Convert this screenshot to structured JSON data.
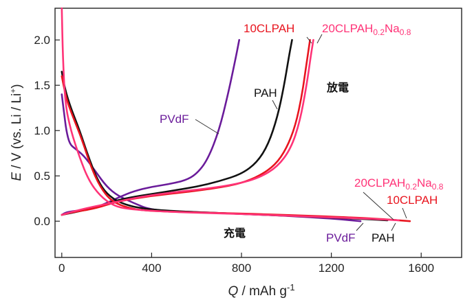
{
  "chart_data": {
    "type": "line",
    "x_axis": {
      "label": "Q / mAh g-1",
      "range": [
        -30,
        1780
      ],
      "ticks": [
        0,
        400,
        800,
        1200,
        1600
      ],
      "tick_labels": [
        "0",
        "400",
        "800",
        "1200",
        "1600"
      ]
    },
    "y_axis": {
      "label": "E / V (vs. Li / Li+)",
      "range": [
        -0.4,
        2.35
      ],
      "ticks": [
        0.0,
        0.5,
        1.0,
        1.5,
        2.0
      ],
      "tick_labels": [
        "0.0",
        "0.5",
        "1.0",
        "1.5",
        "2.0"
      ]
    },
    "grid": false,
    "region_labels": [
      {
        "text": "放電",
        "x": 1240,
        "y": 1.48
      },
      {
        "text": "充電",
        "x": 760,
        "y": -0.14
      }
    ],
    "series": [
      {
        "name": "PVdF",
        "color": "#6a1b9a",
        "discharge": [
          [
            0,
            1.4
          ],
          [
            10,
            1.2
          ],
          [
            20,
            1.0
          ],
          [
            35,
            0.85
          ],
          [
            60,
            0.8
          ],
          [
            100,
            0.72
          ],
          [
            150,
            0.55
          ],
          [
            200,
            0.38
          ],
          [
            250,
            0.28
          ],
          [
            320,
            0.2
          ],
          [
            400,
            0.12
          ],
          [
            600,
            0.1
          ],
          [
            800,
            0.08
          ],
          [
            1000,
            0.06
          ],
          [
            1200,
            0.03
          ],
          [
            1330,
            0.0
          ]
        ],
        "charge": [
          [
            0,
            0.07
          ],
          [
            20,
            0.1
          ],
          [
            80,
            0.12
          ],
          [
            150,
            0.15
          ],
          [
            200,
            0.2
          ],
          [
            260,
            0.27
          ],
          [
            320,
            0.33
          ],
          [
            400,
            0.38
          ],
          [
            480,
            0.41
          ],
          [
            550,
            0.45
          ],
          [
            600,
            0.52
          ],
          [
            650,
            0.68
          ],
          [
            700,
            1.0
          ],
          [
            740,
            1.4
          ],
          [
            770,
            1.75
          ],
          [
            790,
            2.0
          ]
        ]
      },
      {
        "name": "PAH",
        "color": "#111111",
        "discharge": [
          [
            0,
            1.65
          ],
          [
            15,
            1.45
          ],
          [
            40,
            1.25
          ],
          [
            80,
            1.0
          ],
          [
            120,
            0.7
          ],
          [
            160,
            0.45
          ],
          [
            200,
            0.3
          ],
          [
            260,
            0.2
          ],
          [
            350,
            0.14
          ],
          [
            500,
            0.11
          ],
          [
            800,
            0.08
          ],
          [
            1100,
            0.05
          ],
          [
            1300,
            0.03
          ],
          [
            1450,
            0.01
          ]
        ],
        "charge": [
          [
            0,
            0.07
          ],
          [
            60,
            0.1
          ],
          [
            150,
            0.15
          ],
          [
            230,
            0.22
          ],
          [
            300,
            0.26
          ],
          [
            400,
            0.3
          ],
          [
            500,
            0.34
          ],
          [
            600,
            0.38
          ],
          [
            700,
            0.44
          ],
          [
            800,
            0.52
          ],
          [
            870,
            0.65
          ],
          [
            920,
            0.85
          ],
          [
            960,
            1.15
          ],
          [
            990,
            1.5
          ],
          [
            1010,
            1.8
          ],
          [
            1025,
            2.0
          ]
        ]
      },
      {
        "name": "10CLPAH",
        "color": "#e8141e",
        "discharge": [
          [
            0,
            1.6
          ],
          [
            20,
            1.35
          ],
          [
            50,
            1.15
          ],
          [
            90,
            0.9
          ],
          [
            130,
            0.6
          ],
          [
            170,
            0.38
          ],
          [
            220,
            0.22
          ],
          [
            300,
            0.14
          ],
          [
            400,
            0.11
          ],
          [
            700,
            0.09
          ],
          [
            1000,
            0.07
          ],
          [
            1300,
            0.04
          ],
          [
            1450,
            0.02
          ],
          [
            1550,
            0.0
          ]
        ],
        "charge": [
          [
            0,
            0.07
          ],
          [
            50,
            0.1
          ],
          [
            150,
            0.14
          ],
          [
            250,
            0.22
          ],
          [
            400,
            0.28
          ],
          [
            550,
            0.32
          ],
          [
            700,
            0.37
          ],
          [
            800,
            0.42
          ],
          [
            880,
            0.5
          ],
          [
            950,
            0.62
          ],
          [
            1000,
            0.8
          ],
          [
            1040,
            1.05
          ],
          [
            1070,
            1.4
          ],
          [
            1090,
            1.75
          ],
          [
            1105,
            2.0
          ]
        ]
      },
      {
        "name": "20CLPAH0.2Na0.8",
        "color": "#ff3377",
        "discharge": [
          [
            0,
            2.4
          ],
          [
            5,
            1.8
          ],
          [
            15,
            1.3
          ],
          [
            40,
            1.0
          ],
          [
            80,
            0.7
          ],
          [
            120,
            0.45
          ],
          [
            170,
            0.28
          ],
          [
            230,
            0.17
          ],
          [
            300,
            0.13
          ],
          [
            500,
            0.1
          ],
          [
            800,
            0.08
          ],
          [
            1100,
            0.05
          ],
          [
            1350,
            0.03
          ],
          [
            1500,
            0.01
          ]
        ],
        "charge": [
          [
            0,
            0.07
          ],
          [
            40,
            0.1
          ],
          [
            120,
            0.15
          ],
          [
            220,
            0.2
          ],
          [
            350,
            0.27
          ],
          [
            500,
            0.32
          ],
          [
            650,
            0.36
          ],
          [
            780,
            0.41
          ],
          [
            880,
            0.48
          ],
          [
            960,
            0.6
          ],
          [
            1020,
            0.8
          ],
          [
            1060,
            1.1
          ],
          [
            1090,
            1.5
          ],
          [
            1110,
            1.85
          ],
          [
            1120,
            2.0
          ]
        ]
      }
    ],
    "annotations": [
      {
        "text": "10CLPAH",
        "color": "#e8141e"
      },
      {
        "text_main": "20CLPAH",
        "sub1": "0.2",
        "mid": "Na",
        "sub2": "0.8",
        "color": "#ff3377"
      },
      {
        "text": "PAH",
        "color": "#111111"
      },
      {
        "text": "PVdF",
        "color": "#6a1b9a"
      }
    ]
  }
}
